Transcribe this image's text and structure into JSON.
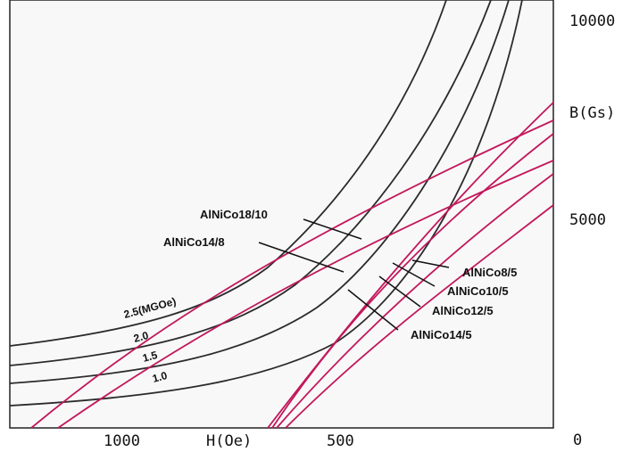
{
  "chart_data": {
    "type": "line",
    "title": "",
    "xlabel": "H(Oe)",
    "ylabel": "B(Gs)",
    "x_ticks": [
      "1000",
      "500"
    ],
    "y_ticks": [
      "10000",
      "5000",
      "0"
    ],
    "grid": false,
    "colors": {
      "energy_curves": "#2b2b2b",
      "demag_curves": "#c2185b",
      "leader": "#111111"
    },
    "energy_product_curves": [
      {
        "label": "2.5(MGOe)"
      },
      {
        "label": "2.0"
      },
      {
        "label": "1.5"
      },
      {
        "label": "1.0"
      }
    ],
    "demagnetization_curves": [
      {
        "label": "AlNiCo18/10"
      },
      {
        "label": "AlNiCo14/8"
      },
      {
        "label": "AlNiCo8/5"
      },
      {
        "label": "AlNiCo10/5"
      },
      {
        "label": "AlNiCo12/5"
      },
      {
        "label": "AlNiCo14/5"
      }
    ]
  }
}
